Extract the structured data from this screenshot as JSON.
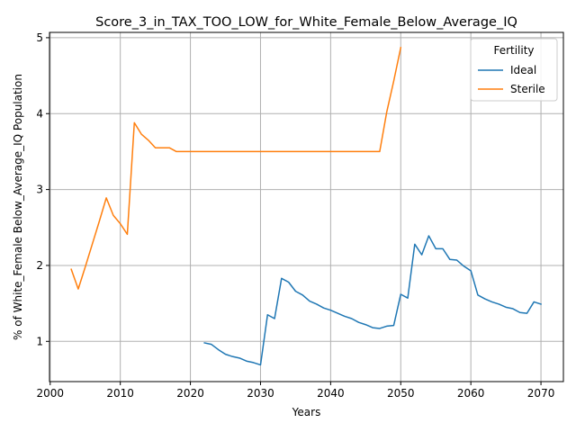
{
  "chart_data": {
    "type": "line",
    "title": "Score_3_in_TAX_TOO_LOW_for_White_Female_Below_Average_IQ",
    "xlabel": "Years",
    "ylabel": "% of White_Female Below_Average_IQ Population",
    "xlim": [
      1999.9,
      2073.2
    ],
    "ylim": [
      0.47,
      5.07
    ],
    "xticks": [
      2000,
      2010,
      2020,
      2030,
      2040,
      2050,
      2060,
      2070
    ],
    "yticks": [
      1,
      2,
      3,
      4,
      5
    ],
    "grid": true,
    "legend": {
      "title": "Fertility",
      "placement": "top-right"
    },
    "series": [
      {
        "name": "Ideal",
        "color": "#1f77b4",
        "x": [
          2022,
          2023,
          2024,
          2025,
          2026,
          2027,
          2028,
          2029,
          2030,
          2031,
          2032,
          2033,
          2034,
          2035,
          2036,
          2037,
          2038,
          2039,
          2040,
          2041,
          2042,
          2043,
          2044,
          2045,
          2046,
          2047,
          2048,
          2049,
          2050,
          2051,
          2052,
          2053,
          2054,
          2055,
          2056,
          2057,
          2058,
          2059,
          2060,
          2061,
          2062,
          2063,
          2064,
          2065,
          2066,
          2067,
          2068,
          2069,
          2070
        ],
        "y": [
          0.98,
          0.96,
          0.89,
          0.83,
          0.8,
          0.78,
          0.74,
          0.72,
          0.69,
          1.35,
          1.3,
          1.83,
          1.78,
          1.66,
          1.61,
          1.53,
          1.49,
          1.44,
          1.41,
          1.37,
          1.33,
          1.3,
          1.25,
          1.22,
          1.18,
          1.17,
          1.2,
          1.21,
          1.62,
          1.57,
          2.28,
          2.14,
          2.39,
          2.22,
          2.22,
          2.08,
          2.07,
          1.99,
          1.93,
          1.61,
          1.56,
          1.52,
          1.49,
          1.45,
          1.43,
          1.38,
          1.37,
          1.52,
          1.49
        ]
      },
      {
        "name": "Sterile",
        "color": "#ff7f0e",
        "x": [
          2003,
          2004,
          2005,
          2006,
          2007,
          2008,
          2009,
          2010,
          2011,
          2012,
          2013,
          2014,
          2015,
          2016,
          2017,
          2018,
          2019,
          2020,
          2021,
          2022,
          2023,
          2024,
          2025,
          2026,
          2027,
          2028,
          2029,
          2030,
          2031,
          2032,
          2033,
          2034,
          2035,
          2036,
          2037,
          2038,
          2039,
          2040,
          2041,
          2042,
          2043,
          2044,
          2045,
          2046,
          2047,
          2048,
          2049,
          2050
        ],
        "y": [
          1.95,
          1.69,
          1.98,
          2.28,
          2.58,
          2.89,
          2.66,
          2.55,
          2.41,
          3.88,
          3.73,
          3.65,
          3.55,
          3.55,
          3.55,
          3.5,
          3.5,
          3.5,
          3.5,
          3.5,
          3.5,
          3.5,
          3.5,
          3.5,
          3.5,
          3.5,
          3.5,
          3.5,
          3.5,
          3.5,
          3.5,
          3.5,
          3.5,
          3.5,
          3.5,
          3.5,
          3.5,
          3.5,
          3.5,
          3.5,
          3.5,
          3.5,
          3.5,
          3.5,
          3.5,
          4.02,
          4.43,
          4.87
        ]
      }
    ]
  }
}
